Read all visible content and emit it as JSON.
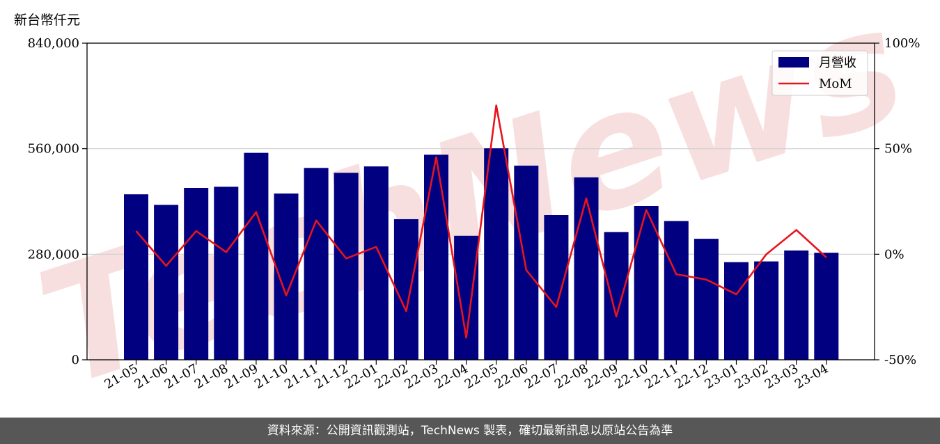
{
  "unit_label": "新台幣仟元",
  "footer_text": "資料來源：公開資訊觀測站，TechNews 製表，確切最新訊息以原站公告為準",
  "watermark": "TechNews",
  "colors": {
    "bar": "#000080",
    "line": "#e8141c",
    "grid": "#cfcfcf",
    "footer_bg": "#575757",
    "watermark": "#f3c4c4"
  },
  "chart_data": {
    "type": "bar",
    "categories": [
      "21-05",
      "21-06",
      "21-07",
      "21-08",
      "21-09",
      "21-10",
      "21-11",
      "21-12",
      "22-01",
      "22-02",
      "22-03",
      "22-04",
      "22-05",
      "22-06",
      "22-07",
      "22-08",
      "22-09",
      "22-10",
      "22-11",
      "22-12",
      "23-01",
      "23-02",
      "23-03",
      "23-04"
    ],
    "series": [
      {
        "name": "月營收",
        "axis": "left",
        "type": "bar",
        "values": [
          439000,
          411000,
          456000,
          459000,
          549000,
          441000,
          509000,
          496000,
          513000,
          373000,
          544000,
          329000,
          561000,
          515000,
          384000,
          484000,
          339000,
          408000,
          368000,
          321000,
          259000,
          261000,
          290000,
          284000
        ]
      },
      {
        "name": "MoM",
        "axis": "right",
        "type": "line",
        "values": [
          11,
          -5.5,
          11,
          1,
          20,
          -19.5,
          16,
          -2,
          3.5,
          -27,
          46,
          -39.5,
          70.5,
          -7.5,
          -25,
          26.5,
          -29.5,
          21,
          -9.5,
          -12,
          -19,
          0,
          11.5,
          -1.5
        ]
      }
    ],
    "left_axis": {
      "ticks": [
        "0",
        "280,000",
        "560,000",
        "840,000"
      ],
      "tick_values": [
        0,
        280000,
        560000,
        840000
      ],
      "ylim": [
        0,
        840000
      ]
    },
    "right_axis": {
      "ticks": [
        "-50%",
        "0%",
        "50%",
        "100%"
      ],
      "tick_values": [
        -50,
        0,
        50,
        100
      ],
      "ylim": [
        -50,
        100
      ]
    },
    "grid": true,
    "legend_position": "top-right"
  }
}
